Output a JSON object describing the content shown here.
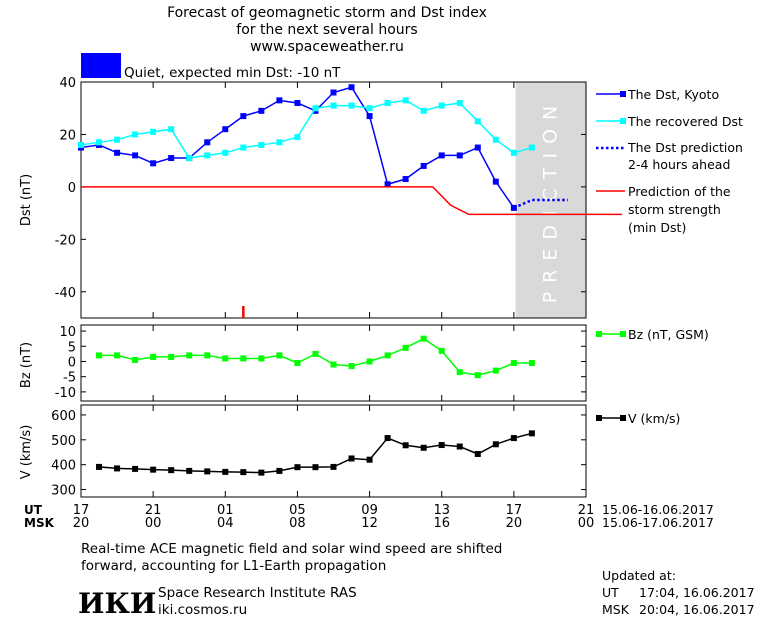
{
  "header": {
    "title_line1": "Forecast of geomagnetic storm and Dst index",
    "title_line2": "for the next several hours",
    "site": "www.spaceweather.ru",
    "status_color": "#0000ff",
    "status_text": "Quiet, expected min Dst: -10 nT"
  },
  "axes": {
    "x_ticks": [
      {
        "h": 0,
        "ut": "17",
        "msk": "20"
      },
      {
        "h": 4,
        "ut": "21",
        "msk": "00"
      },
      {
        "h": 8,
        "ut": "01",
        "msk": "04"
      },
      {
        "h": 12,
        "ut": "05",
        "msk": "08"
      },
      {
        "h": 16,
        "ut": "09",
        "msk": "12"
      },
      {
        "h": 20,
        "ut": "13",
        "msk": "16"
      },
      {
        "h": 24,
        "ut": "17",
        "msk": "20"
      },
      {
        "h": 28,
        "ut": "21",
        "msk": "00"
      }
    ],
    "ut_label": "UT",
    "msk_label": "MSK",
    "ut_range": "15.06-16.06.2017",
    "msk_range": "15.06-17.06.2017",
    "prediction_label": "PREDICTION"
  },
  "chart_data": [
    {
      "type": "line",
      "ylabel": "Dst (nT)",
      "ylim": [
        -50,
        40
      ],
      "y_ticks": [
        40,
        20,
        0,
        -20,
        -40
      ],
      "x_unit": "hours from 17 UT 15.06.2017",
      "xlim": [
        0,
        28
      ],
      "prediction_region": [
        0.0,
        0.0
      ],
      "marker_hour": 9,
      "series": [
        {
          "name": "The Dst, Kyoto",
          "color": "#0000ff",
          "marker": "square",
          "x": [
            0,
            1,
            2,
            3,
            4,
            5,
            6,
            7,
            8,
            9,
            10,
            11,
            12,
            13,
            14,
            15,
            16,
            17,
            18,
            19,
            20,
            21,
            22,
            23,
            24
          ],
          "values": [
            15,
            16,
            13,
            12,
            9,
            11,
            11,
            17,
            22,
            27,
            29,
            33,
            32,
            29,
            36,
            38,
            27,
            1,
            3,
            8,
            12,
            12,
            15,
            2,
            -8
          ]
        },
        {
          "name": "The recovered Dst",
          "color": "#00ffff",
          "marker": "square",
          "x": [
            0,
            1,
            2,
            3,
            4,
            5,
            6,
            7,
            8,
            9,
            10,
            11,
            12,
            13,
            14,
            15,
            16,
            17,
            18,
            19,
            20,
            21,
            22,
            23,
            24,
            25
          ],
          "values": [
            16,
            17,
            18,
            20,
            21,
            22,
            11,
            12,
            13,
            15,
            16,
            17,
            19,
            30,
            31,
            31,
            30,
            32,
            33,
            29,
            31,
            32,
            25,
            18,
            13,
            15
          ]
        },
        {
          "name": "The Dst prediction 2-4 hours ahead",
          "color": "#0000ff",
          "style": "dotted",
          "x": [
            24,
            25,
            26,
            27
          ],
          "values": [
            -8,
            -5,
            -5,
            -5
          ]
        },
        {
          "name": "Prediction of the storm strength (min Dst)",
          "color": "#ff0000",
          "x": [
            0,
            19.5,
            20.5,
            21.5,
            24,
            30
          ],
          "values": [
            0,
            0,
            -7,
            -10.5,
            -10.5,
            -10.5
          ]
        }
      ]
    },
    {
      "type": "line",
      "ylabel": "Bz (nT)",
      "ylim": [
        -13,
        12
      ],
      "y_ticks": [
        10,
        5,
        0,
        -5,
        -10
      ],
      "series": [
        {
          "name": "Bz (nT, GSM)",
          "color": "#00ff00",
          "marker": "square",
          "x": [
            1,
            2,
            3,
            4,
            5,
            6,
            7,
            8,
            9,
            10,
            11,
            12,
            13,
            14,
            15,
            16,
            17,
            18,
            19,
            20,
            21,
            22,
            23,
            24,
            25
          ],
          "values": [
            2,
            2,
            0.5,
            1.5,
            1.5,
            2,
            2,
            1,
            1,
            1,
            2,
            -0.5,
            2.5,
            -1,
            -1.5,
            0,
            2,
            4.5,
            7.5,
            3.5,
            -3.5,
            -4.5,
            -3,
            -0.5,
            -0.5
          ]
        }
      ]
    },
    {
      "type": "line",
      "ylabel": "V (km/s)",
      "ylim": [
        270,
        640
      ],
      "y_ticks": [
        600,
        500,
        400,
        300
      ],
      "series": [
        {
          "name": "V (km/s)",
          "color": "#000000",
          "marker": "square",
          "x": [
            1,
            2,
            3,
            4,
            5,
            6,
            7,
            8,
            9,
            10,
            11,
            12,
            13,
            14,
            15,
            16,
            17,
            18,
            19,
            20,
            21,
            22,
            23,
            24,
            25
          ],
          "values": [
            391,
            385,
            383,
            380,
            378,
            375,
            373,
            371,
            370,
            368,
            375,
            390,
            390,
            391,
            425,
            420,
            507,
            478,
            468,
            479,
            473,
            443,
            482,
            507,
            526
          ]
        }
      ]
    }
  ],
  "legend": {
    "kyoto": "The Dst, Kyoto",
    "recovered": "The recovered Dst",
    "prediction_l1": "The Dst prediction",
    "prediction_l2": "2-4 hours ahead",
    "storm_l1": "Prediction of the",
    "storm_l2": "storm strength",
    "storm_l3": "(min Dst)",
    "bz": "Bz (nT, GSM)",
    "v": "V (km/s)"
  },
  "footer": {
    "note_line1": "Real-time ACE magnetic field and solar wind speed are shifted",
    "note_line2": "forward, accounting for L1-Earth propagation",
    "logo_text": "ИКИ",
    "institute": "Space Research Institute RAS",
    "url": "iki.cosmos.ru",
    "updated_label": "Updated at:",
    "updated_ut_label": "UT",
    "updated_ut": "17:04, 16.06.2017",
    "updated_msk_label": "MSK",
    "updated_msk": "20:04, 16.06.2017"
  }
}
